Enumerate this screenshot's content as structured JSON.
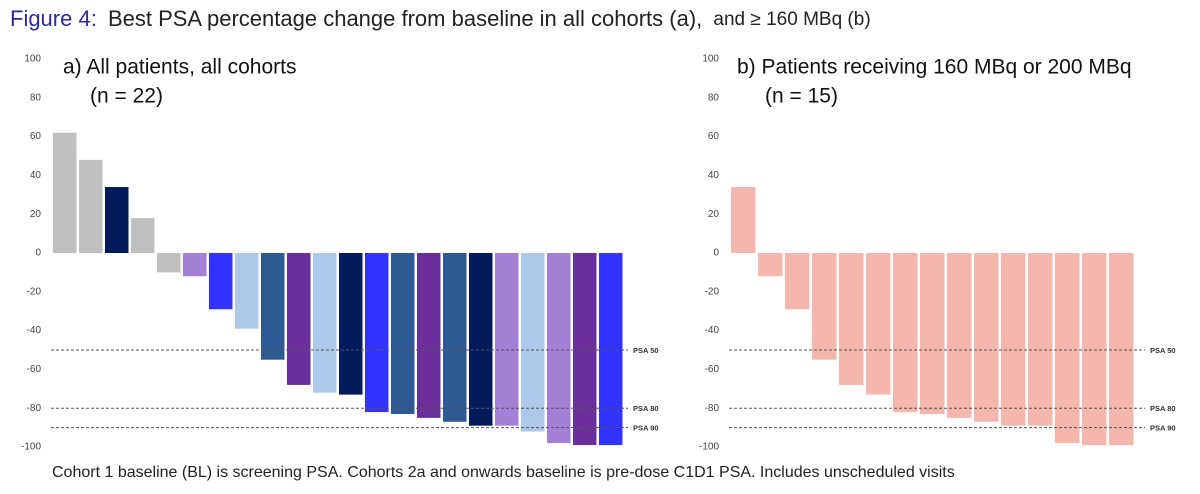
{
  "figure_title": [
    "Figure 4:",
    "Best PSA percentage change from baseline in all cohorts (a),",
    "and ≥ 160 MBq (b)"
  ],
  "footnote": "Cohort 1 baseline (BL) is screening PSA. Cohorts 2a and onwards baseline is pre-dose C1D1 PSA. Includes unscheduled visits",
  "chart_data": [
    {
      "type": "bar",
      "title": "a) All patients, all cohorts",
      "subtitle": "(n = 22)",
      "values": [
        62,
        48,
        34,
        18,
        -10,
        -12,
        -29,
        -39,
        -55,
        -68,
        -72,
        -73,
        -82,
        -83,
        -85,
        -87,
        -89,
        -89,
        -92,
        -98,
        -99,
        -99
      ],
      "colors": [
        "#bfbfbf",
        "#bfbfbf",
        "#001a5c",
        "#bfbfbf",
        "#bfbfbf",
        "#a47fd6",
        "#3333ff",
        "#adc8e8",
        "#2e5a94",
        "#6a2f9a",
        "#adc8e8",
        "#001a5c",
        "#3333ff",
        "#2e5a94",
        "#6a2f9a",
        "#2e5a94",
        "#001a5c",
        "#a47fd6",
        "#adc8e8",
        "#a47fd6",
        "#6a2f9a",
        "#3333ff"
      ],
      "ylim": [
        -100,
        100
      ],
      "yticks": [
        -100,
        -80,
        -60,
        -40,
        -20,
        0,
        20,
        40,
        60,
        80,
        100
      ],
      "reference_lines": [
        {
          "value": -50,
          "label": "PSA 50"
        },
        {
          "value": -80,
          "label": "PSA 80"
        },
        {
          "value": -90,
          "label": "PSA 90"
        }
      ]
    },
    {
      "type": "bar",
      "title": "b) Patients receiving 160 MBq or 200 MBq",
      "subtitle": "(n = 15)",
      "values": [
        34,
        -12,
        -29,
        -55,
        -68,
        -73,
        -82,
        -83,
        -85,
        -87,
        -89,
        -89,
        -98,
        -99,
        -99
      ],
      "color": "#f4b6ad",
      "ylim": [
        -100,
        100
      ],
      "yticks": [
        -100,
        -80,
        -60,
        -40,
        -20,
        0,
        20,
        40,
        60,
        80,
        100
      ],
      "reference_lines": [
        {
          "value": -50,
          "label": "PSA 50"
        },
        {
          "value": -80,
          "label": "PSA 80"
        },
        {
          "value": -90,
          "label": "PSA 90"
        }
      ]
    }
  ]
}
